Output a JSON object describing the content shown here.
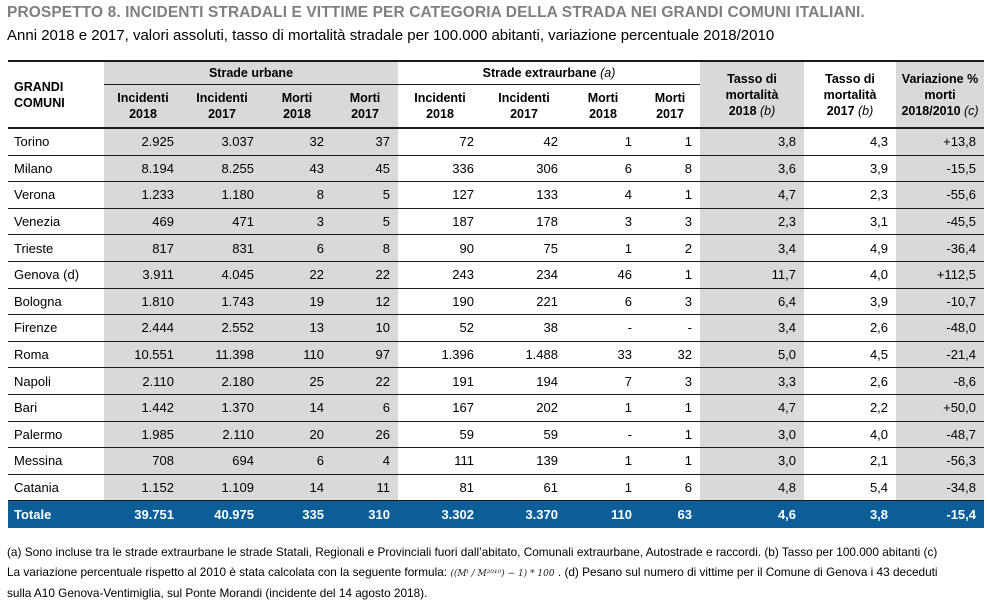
{
  "title": "PROSPETTO 8. INCIDENTI STRADALI E VITTIME PER CATEGORIA DELLA STRADA NEI GRANDI COMUNI ITALIANI.",
  "subtitle": "Anni 2018 e 2017, valori assoluti, tasso di mortalità stradale per 100.000 abitanti, variazione percentuale 2018/2010",
  "header": {
    "grandi_comuni_line1": "GRANDI",
    "grandi_comuni_line2": "COMUNI",
    "strade_urbane": "Strade urbane",
    "strade_extraurbane": "Strade extraurbane",
    "strade_extraurbane_note": "(a)",
    "incidenti_2018": [
      "Incidenti",
      "2018"
    ],
    "incidenti_2017": [
      "Incidenti",
      "2017"
    ],
    "morti_2018": [
      "Morti",
      "2018"
    ],
    "morti_2017": [
      "Morti",
      "2017"
    ],
    "tasso_2018": [
      "Tasso di",
      "mortalità",
      "2018",
      "(b)"
    ],
    "tasso_2017": [
      "Tasso di",
      "mortalità",
      "2017",
      "(b)"
    ],
    "variazione": [
      "Variazione %",
      "morti",
      "2018/2010",
      "(c)"
    ]
  },
  "rows": [
    {
      "city": "Torino",
      "u_inc18": "2.925",
      "u_inc17": "3.037",
      "u_m18": "32",
      "u_m17": "37",
      "e_inc18": "72",
      "e_inc17": "42",
      "e_m18": "1",
      "e_m17": "1",
      "t18": "3,8",
      "t17": "4,3",
      "var": "+13,8"
    },
    {
      "city": "Milano",
      "u_inc18": "8.194",
      "u_inc17": "8.255",
      "u_m18": "43",
      "u_m17": "45",
      "e_inc18": "336",
      "e_inc17": "306",
      "e_m18": "6",
      "e_m17": "8",
      "t18": "3,6",
      "t17": "3,9",
      "var": "-15,5"
    },
    {
      "city": "Verona",
      "u_inc18": "1.233",
      "u_inc17": "1.180",
      "u_m18": "8",
      "u_m17": "5",
      "e_inc18": "127",
      "e_inc17": "133",
      "e_m18": "4",
      "e_m17": "1",
      "t18": "4,7",
      "t17": "2,3",
      "var": "-55,6"
    },
    {
      "city": "Venezia",
      "u_inc18": "469",
      "u_inc17": "471",
      "u_m18": "3",
      "u_m17": "5",
      "e_inc18": "187",
      "e_inc17": "178",
      "e_m18": "3",
      "e_m17": "3",
      "t18": "2,3",
      "t17": "3,1",
      "var": "-45,5"
    },
    {
      "city": "Trieste",
      "u_inc18": "817",
      "u_inc17": "831",
      "u_m18": "6",
      "u_m17": "8",
      "e_inc18": "90",
      "e_inc17": "75",
      "e_m18": "1",
      "e_m17": "2",
      "t18": "3,4",
      "t17": "4,9",
      "var": "-36,4"
    },
    {
      "city": "Genova (d)",
      "u_inc18": "3.911",
      "u_inc17": "4.045",
      "u_m18": "22",
      "u_m17": "22",
      "e_inc18": "243",
      "e_inc17": "234",
      "e_m18": "46",
      "e_m17": "1",
      "t18": "11,7",
      "t17": "4,0",
      "var": "+112,5"
    },
    {
      "city": "Bologna",
      "u_inc18": "1.810",
      "u_inc17": "1.743",
      "u_m18": "19",
      "u_m17": "12",
      "e_inc18": "190",
      "e_inc17": "221",
      "e_m18": "6",
      "e_m17": "3",
      "t18": "6,4",
      "t17": "3,9",
      "var": "-10,7"
    },
    {
      "city": "Firenze",
      "u_inc18": "2.444",
      "u_inc17": "2.552",
      "u_m18": "13",
      "u_m17": "10",
      "e_inc18": "52",
      "e_inc17": "38",
      "e_m18": "-",
      "e_m17": "-",
      "t18": "3,4",
      "t17": "2,6",
      "var": "-48,0"
    },
    {
      "city": "Roma",
      "u_inc18": "10.551",
      "u_inc17": "11.398",
      "u_m18": "110",
      "u_m17": "97",
      "e_inc18": "1.396",
      "e_inc17": "1.488",
      "e_m18": "33",
      "e_m17": "32",
      "t18": "5,0",
      "t17": "4,5",
      "var": "-21,4"
    },
    {
      "city": "Napoli",
      "u_inc18": "2.110",
      "u_inc17": "2.180",
      "u_m18": "25",
      "u_m17": "22",
      "e_inc18": "191",
      "e_inc17": "194",
      "e_m18": "7",
      "e_m17": "3",
      "t18": "3,3",
      "t17": "2,6",
      "var": "-8,6"
    },
    {
      "city": "Bari",
      "u_inc18": "1.442",
      "u_inc17": "1.370",
      "u_m18": "14",
      "u_m17": "6",
      "e_inc18": "167",
      "e_inc17": "202",
      "e_m18": "1",
      "e_m17": "1",
      "t18": "4,7",
      "t17": "2,2",
      "var": "+50,0"
    },
    {
      "city": "Palermo",
      "u_inc18": "1.985",
      "u_inc17": "2.110",
      "u_m18": "20",
      "u_m17": "26",
      "e_inc18": "59",
      "e_inc17": "59",
      "e_m18": "-",
      "e_m17": "1",
      "t18": "3,0",
      "t17": "4,0",
      "var": "-48,7"
    },
    {
      "city": "Messina",
      "u_inc18": "708",
      "u_inc17": "694",
      "u_m18": "6",
      "u_m17": "4",
      "e_inc18": "111",
      "e_inc17": "139",
      "e_m18": "1",
      "e_m17": "1",
      "t18": "3,0",
      "t17": "2,1",
      "var": "-56,3"
    },
    {
      "city": "Catania",
      "u_inc18": "1.152",
      "u_inc17": "1.109",
      "u_m18": "14",
      "u_m17": "11",
      "e_inc18": "81",
      "e_inc17": "61",
      "e_m18": "1",
      "e_m17": "6",
      "t18": "4,8",
      "t17": "5,4",
      "var": "-34,8"
    }
  ],
  "total": {
    "city": "Totale",
    "u_inc18": "39.751",
    "u_inc17": "40.975",
    "u_m18": "335",
    "u_m17": "310",
    "e_inc18": "3.302",
    "e_inc17": "3.370",
    "e_m18": "110",
    "e_m17": "63",
    "t18": "4,6",
    "t17": "3,8",
    "var": "-15,4"
  },
  "notes": {
    "line1": "(a) Sono incluse tra le strade extraurbane le strade Statali, Regionali e Provinciali fuori dall’abitato, Comunali extraurbane, Autostrade e raccordi. (b) Tasso per 100.000 abitanti (c)",
    "line2_pre": "La variazione percentuale rispetto al 2010 è stata calcolata con la seguente formula:",
    "formula": "((Mᵗ / M²⁰¹⁰) − 1) * 100",
    "line2_post": ". (d) Pesano sul numero di vittime per il Comune di Genova i 43 deceduti",
    "line3": "sulla A10 Genova-Ventimiglia, sul Ponte Morandi (incidente del 14 agosto 2018)."
  }
}
